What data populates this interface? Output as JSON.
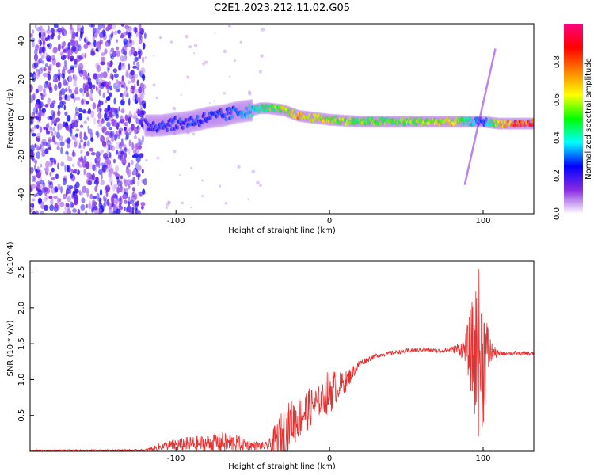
{
  "title": "C2E1.2023.212.11.02.G05",
  "chart_data": [
    {
      "type": "heatmap",
      "xlabel": "Height of straight line (km)",
      "ylabel": "Frequency (Hz)",
      "xlim": [
        -195,
        133
      ],
      "ylim": [
        -50,
        49
      ],
      "xticks": [
        -100,
        0,
        100
      ],
      "yticks": [
        -40,
        -20,
        0,
        20,
        40
      ],
      "colorbar": {
        "label": "Normalized spectral amplitude",
        "range": [
          0,
          1
        ],
        "ticks": [
          "0.0",
          "0.2",
          "0.4",
          "0.6",
          "0.8"
        ],
        "tick_values": [
          0.0,
          0.2,
          0.4,
          0.6,
          0.8
        ],
        "colormap": [
          "#ffffff",
          "#8a2be2",
          "#0000ff",
          "#00ffff",
          "#00ff00",
          "#ffff00",
          "#ff8000",
          "#ff0000",
          "#ff0080"
        ]
      },
      "noise_region_x": [
        -195,
        -120
      ],
      "ridge": {
        "x": [
          -120,
          -110,
          -100,
          -90,
          -80,
          -70,
          -60,
          -50,
          -45,
          -40,
          -30,
          -20,
          -10,
          0,
          20,
          40,
          60,
          80,
          90,
          100,
          110,
          120,
          133
        ],
        "freq": [
          -4,
          -4,
          -3,
          -2,
          0,
          1,
          3,
          4,
          5,
          5,
          4,
          1,
          0,
          -1,
          -2,
          -2,
          -2,
          -2,
          -2,
          -2,
          -3,
          -3,
          -3
        ],
        "amp": [
          0.25,
          0.3,
          0.3,
          0.32,
          0.3,
          0.3,
          0.35,
          0.45,
          0.5,
          0.55,
          0.7,
          0.8,
          0.75,
          0.7,
          0.6,
          0.6,
          0.65,
          0.7,
          0.5,
          0.3,
          0.7,
          0.9,
          0.95
        ]
      },
      "diagonal_streak": {
        "x": [
          88,
          108
        ],
        "freq": [
          -35,
          36
        ]
      }
    },
    {
      "type": "line",
      "xlabel": "Height of straight line (km)",
      "ylabel": "SNR (10 * v/v)",
      "y_multiplier": "(x10^4)",
      "xlim": [
        -195,
        133
      ],
      "ylim": [
        0,
        26500
      ],
      "xticks": [
        -100,
        0,
        100
      ],
      "yticks": [
        0.5,
        1.0,
        1.5,
        2.0,
        2.5
      ],
      "ytick_labels": [
        "0.5",
        "1.0",
        "1.5",
        "2.0",
        "2.5"
      ],
      "color": "#e83030",
      "series": [
        {
          "x": [
            -195,
            -120,
            -110,
            -100,
            -90,
            -80,
            -70,
            -60,
            -50,
            -40,
            -35,
            -30,
            -25,
            -20,
            -15,
            -10,
            -5,
            0,
            5,
            10,
            15,
            20,
            30,
            40,
            50,
            60,
            70,
            80,
            88,
            92,
            95,
            97,
            100,
            103,
            106,
            110,
            115,
            120,
            133
          ],
          "y": [
            100,
            150,
            600,
            900,
            1000,
            1100,
            1200,
            1100,
            800,
            700,
            1500,
            2500,
            3800,
            4700,
            5700,
            6500,
            7200,
            8500,
            9000,
            9600,
            11000,
            12300,
            13300,
            13700,
            14000,
            14200,
            14000,
            14200,
            14300,
            14200,
            13500,
            14000,
            13000,
            14000,
            13800,
            13600,
            13700,
            13700,
            13600
          ],
          "noise": [
            100,
            150,
            600,
            900,
            1100,
            1200,
            1500,
            1200,
            600,
            600,
            2500,
            3500,
            3500,
            3000,
            3000,
            2500,
            2000,
            3500,
            2000,
            1500,
            1000,
            500,
            300,
            300,
            300,
            300,
            300,
            400,
            1500,
            6000,
            10000,
            12000,
            10000,
            4000,
            1200,
            400,
            300,
            300,
            300
          ]
        }
      ]
    }
  ]
}
